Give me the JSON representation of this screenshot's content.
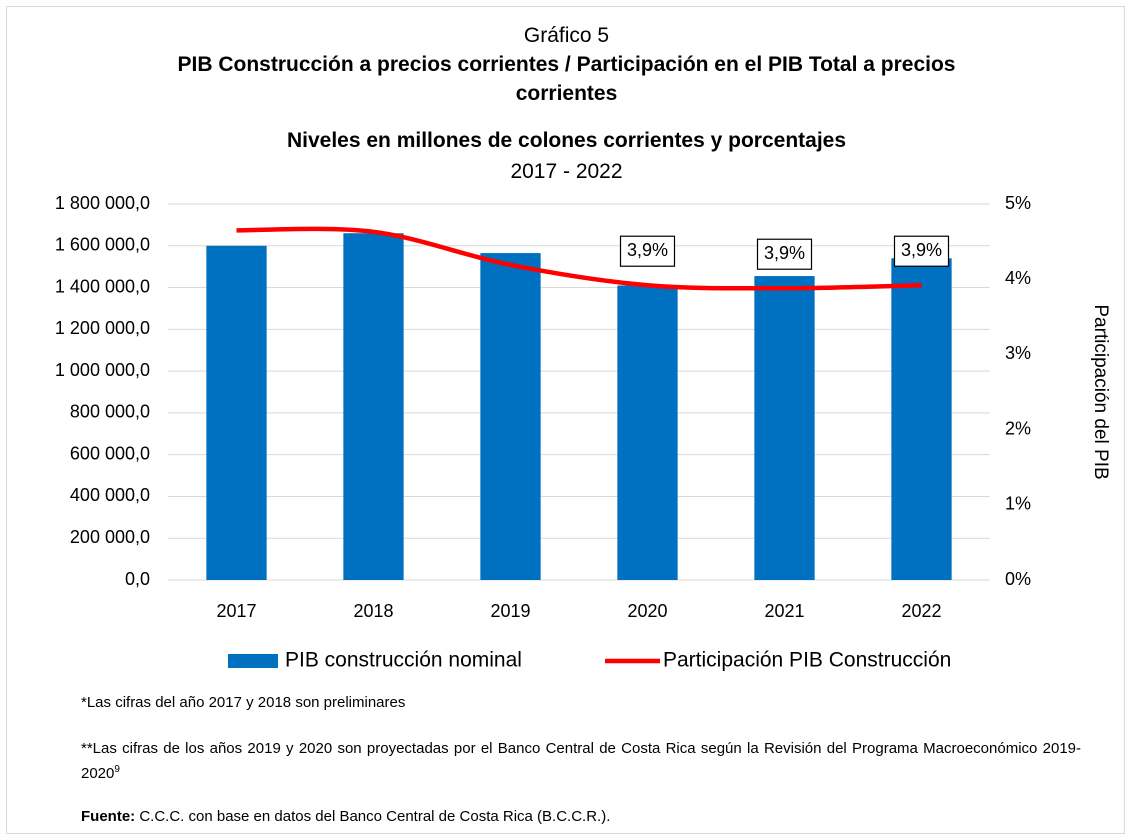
{
  "chart_data": {
    "type": "bar_line",
    "title": "Gráfico 5",
    "subtitle": "PIB Construcción a precios corrientes / Participación en el PIB Total a precios corrientes",
    "subtitle2": "Niveles en millones de colones corrientes y porcentajes",
    "period": "2017 - 2022",
    "y2_label": "Participación del PIB",
    "categories": [
      "2017",
      "2018",
      "2019",
      "2020",
      "2021",
      "2022"
    ],
    "series": [
      {
        "name": "PIB construcción nominal",
        "color": "#0070c0",
        "kind": "bar",
        "values": [
          1600000,
          1660000,
          1565000,
          1410000,
          1455000,
          1540000
        ]
      },
      {
        "name": "Participación PIB Construcción",
        "color": "#ff0000",
        "kind": "line",
        "axis": "y2",
        "values": [
          4.65,
          4.63,
          4.19,
          3.92,
          3.88,
          3.92
        ],
        "value_labels": [
          null,
          null,
          null,
          "3,9%",
          "3,9%",
          "3,9%"
        ]
      }
    ],
    "ylim": [
      0,
      1800000
    ],
    "yticks": [
      {
        "value": 0,
        "label": "0,0"
      },
      {
        "value": 200000,
        "label": "200 000,0"
      },
      {
        "value": 400000,
        "label": "400 000,0"
      },
      {
        "value": 600000,
        "label": "600 000,0"
      },
      {
        "value": 800000,
        "label": "800 000,0"
      },
      {
        "value": 1000000,
        "label": "1 000 000,0"
      },
      {
        "value": 1200000,
        "label": "1 200 000,0"
      },
      {
        "value": 1400000,
        "label": "1 400 000,0"
      },
      {
        "value": 1600000,
        "label": "1 600 000,0"
      },
      {
        "value": 1800000,
        "label": "1 800 000,0"
      }
    ],
    "y2lim": [
      0,
      5
    ],
    "y2ticks": [
      {
        "value": 0,
        "label": "0%"
      },
      {
        "value": 1,
        "label": "1%"
      },
      {
        "value": 2,
        "label": "2%"
      },
      {
        "value": 3,
        "label": "3%"
      },
      {
        "value": 4,
        "label": "4%"
      },
      {
        "value": 5,
        "label": "5%"
      }
    ],
    "grid": true,
    "legend": "bottom"
  },
  "notes": {
    "note1": "*Las cifras del año 2017 y 2018 son preliminares",
    "note2": "**Las cifras de los años 2019 y 2020 son proyectadas por el Banco Central de Costa Rica según la Revisión del Programa Macroeconómico 2019-2020",
    "note2_sup": "9",
    "source_label": "Fuente:",
    "source": " C.C.C. con base en datos del Banco Central de Costa Rica (B.C.C.R.)."
  }
}
